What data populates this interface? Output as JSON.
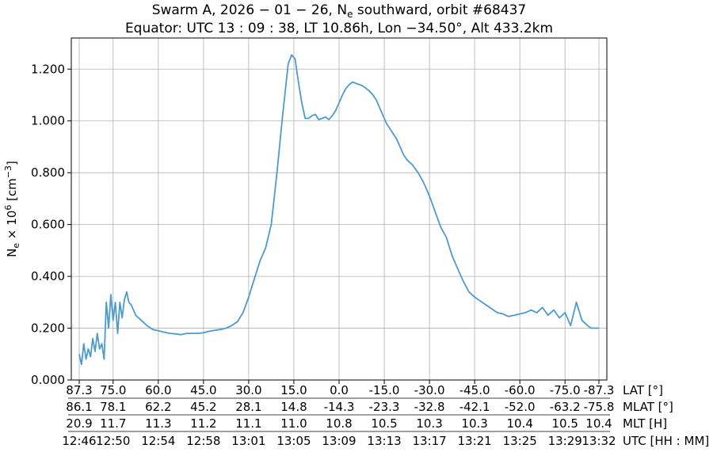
{
  "chart_data": {
    "type": "line",
    "title_line1": "Swarm A,  2026 − 01 − 26,  N",
    "title_line1_sub": "e",
    "title_line1_end": " southward,  orbit #68437",
    "title_line2": "Equator:  UTC 13 : 09 : 38,  LT 10.86h,  Lon  −34.50°,  Alt 433.2km",
    "ylabel_main": "N",
    "ylabel_sub": "e",
    "ylabel_mid": " × 10",
    "ylabel_sup": "6",
    "ylabel_unit": " [cm",
    "ylabel_unit_sup": "−3",
    "ylabel_close": "]",
    "ylim": [
      0,
      1.32
    ],
    "yticks": [
      0.0,
      0.2,
      0.4,
      0.6,
      0.8,
      1.0,
      1.2
    ],
    "ytick_labels": [
      "0.000",
      "0.200",
      "0.400",
      "0.600",
      "0.800",
      "1.000",
      "1.200"
    ],
    "xlim": [
      0,
      46
    ],
    "x_rows": [
      {
        "caption": "LAT [°]",
        "labels": [
          "87.3",
          "75.0",
          "60.0",
          "45.0",
          "30.0",
          "15.0",
          "0.0",
          "-15.0",
          "-30.0",
          "-45.0",
          "-60.0",
          "-75.0",
          "-87.3"
        ]
      },
      {
        "caption": "MLAT [°]",
        "labels": [
          "86.1",
          "78.1",
          "62.2",
          "45.2",
          "28.1",
          "14.8",
          "-14.3",
          "-23.3",
          "-32.8",
          "-42.1",
          "-52.0",
          "-63.2",
          "-75.8"
        ]
      },
      {
        "caption": "MLT [H]",
        "labels": [
          "20.9",
          "11.7",
          "11.3",
          "11.2",
          "11.1",
          "11.0",
          "10.8",
          "10.5",
          "10.3",
          "10.3",
          "10.4",
          "10.5",
          "10.4"
        ]
      },
      {
        "caption": "UTC [HH : MM]",
        "labels": [
          "12:46",
          "12:50",
          "12:54",
          "12:58",
          "13:01",
          "13:05",
          "13:09",
          "13:13",
          "13:17",
          "13:21",
          "13:25",
          "13:29",
          "13:32"
        ]
      }
    ],
    "x_tick_positions": [
      0,
      3,
      7,
      11,
      15,
      19,
      23,
      27,
      31,
      35,
      39,
      43,
      46
    ],
    "grid": true,
    "line_color": "#4b9bcc",
    "series": [
      {
        "x": [
          0,
          0.2,
          0.4,
          0.6,
          0.8,
          1.0,
          1.2,
          1.4,
          1.6,
          1.8,
          2.0,
          2.2,
          2.4,
          2.6,
          2.8,
          3.0,
          3.2,
          3.4,
          3.6,
          3.8,
          4.0,
          4.2,
          4.4,
          4.6,
          4.8,
          5.0,
          5.5,
          6.0,
          6.5,
          7.0,
          7.5,
          8.0,
          8.5,
          9.0,
          9.5,
          10.0,
          10.5,
          11.0,
          11.5,
          12.0,
          12.5,
          13.0,
          13.5,
          14.0,
          14.5,
          15.0,
          15.5,
          16.0,
          16.5,
          17.0,
          17.5,
          18.0,
          18.5,
          18.8,
          19.1,
          19.4,
          19.7,
          20.0,
          20.3,
          20.6,
          20.9,
          21.2,
          21.5,
          21.8,
          22.1,
          22.4,
          22.7,
          23.0,
          23.3,
          23.6,
          23.9,
          24.2,
          24.5,
          24.8,
          25.1,
          25.4,
          25.7,
          26.0,
          26.3,
          26.6,
          26.9,
          27.2,
          27.5,
          27.8,
          28.1,
          28.4,
          28.7,
          29.0,
          29.5,
          30.0,
          30.5,
          31.0,
          31.5,
          32.0,
          32.5,
          33.0,
          33.5,
          34.0,
          34.5,
          35.0,
          35.5,
          36.0,
          36.5,
          37.0,
          37.5,
          38.0,
          38.5,
          39.0,
          39.5,
          40.0,
          40.5,
          41.0,
          41.5,
          42.0,
          42.5,
          43.0,
          43.5,
          44.0,
          44.5,
          45.0,
          45.3,
          45.6,
          45.8,
          46.0
        ],
        "y": [
          0.1,
          0.06,
          0.14,
          0.08,
          0.12,
          0.09,
          0.16,
          0.11,
          0.18,
          0.12,
          0.14,
          0.08,
          0.3,
          0.2,
          0.33,
          0.23,
          0.3,
          0.18,
          0.3,
          0.24,
          0.31,
          0.34,
          0.3,
          0.29,
          0.27,
          0.25,
          0.23,
          0.21,
          0.195,
          0.19,
          0.185,
          0.18,
          0.178,
          0.175,
          0.18,
          0.18,
          0.18,
          0.182,
          0.188,
          0.192,
          0.195,
          0.2,
          0.21,
          0.225,
          0.26,
          0.32,
          0.39,
          0.46,
          0.51,
          0.6,
          0.8,
          1.02,
          1.22,
          1.255,
          1.24,
          1.15,
          1.07,
          1.01,
          1.01,
          1.02,
          1.025,
          1.005,
          1.01,
          1.015,
          1.005,
          1.02,
          1.04,
          1.07,
          1.1,
          1.125,
          1.14,
          1.15,
          1.145,
          1.14,
          1.135,
          1.125,
          1.115,
          1.1,
          1.08,
          1.05,
          1.02,
          0.99,
          0.97,
          0.95,
          0.93,
          0.9,
          0.87,
          0.85,
          0.83,
          0.8,
          0.76,
          0.71,
          0.65,
          0.59,
          0.55,
          0.48,
          0.43,
          0.38,
          0.34,
          0.32,
          0.305,
          0.29,
          0.275,
          0.26,
          0.255,
          0.245,
          0.25,
          0.255,
          0.26,
          0.27,
          0.26,
          0.28,
          0.25,
          0.27,
          0.24,
          0.26,
          0.21,
          0.3,
          0.23,
          0.21,
          0.2,
          0.2,
          0.2,
          0.2
        ]
      }
    ]
  }
}
